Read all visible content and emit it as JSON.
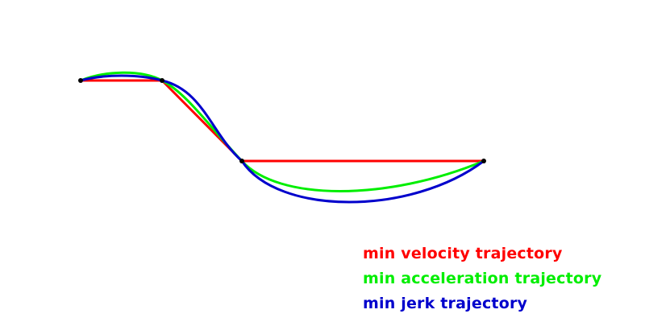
{
  "diagram": {
    "waypoints": [
      {
        "id": "p1"
      },
      {
        "id": "p2"
      },
      {
        "id": "p3"
      },
      {
        "id": "p4"
      }
    ],
    "trajectories": [
      {
        "key": "min_velocity",
        "label": "min velocity trajectory",
        "color": "#ff0000"
      },
      {
        "key": "min_acceleration",
        "label": "min acceleration trajectory",
        "color": "#00ee00"
      },
      {
        "key": "min_jerk",
        "label": "min jerk trajectory",
        "color": "#0000cc"
      }
    ],
    "waypoint_color": "#000000"
  }
}
